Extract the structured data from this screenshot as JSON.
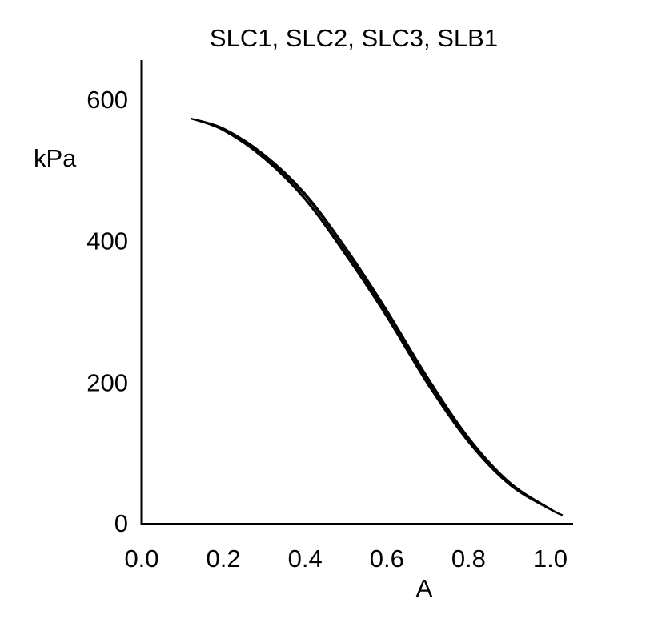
{
  "chart_data": {
    "type": "line",
    "title": "SLC1, SLC2, SLC3, SLB1",
    "xlabel": "A",
    "ylabel": "kPa",
    "xlim": [
      0.0,
      1.05
    ],
    "ylim": [
      0,
      650
    ],
    "xticks": [
      "0.0",
      "0.2",
      "0.4",
      "0.6",
      "0.8",
      "1.0"
    ],
    "yticks": [
      "0",
      "200",
      "400",
      "600"
    ],
    "grid": false,
    "legend": "none",
    "line_color": "#000000",
    "series": [
      {
        "x": [
          0.12,
          0.2,
          0.3,
          0.4,
          0.5,
          0.6,
          0.7,
          0.8,
          0.9,
          1.0,
          1.03
        ],
        "y": [
          573,
          557,
          518,
          460,
          382,
          295,
          200,
          117,
          56,
          20,
          12
        ]
      },
      {
        "x": [
          0.12,
          0.2,
          0.3,
          0.4,
          0.5,
          0.6,
          0.7,
          0.8,
          0.9,
          1.0,
          1.03
        ],
        "y": [
          573,
          559,
          522,
          467,
          390,
          302,
          207,
          122,
          59,
          21,
          12
        ]
      },
      {
        "x": [
          0.12,
          0.2,
          0.3,
          0.4,
          0.5,
          0.6,
          0.7,
          0.8,
          0.9,
          1.0,
          1.03
        ],
        "y": [
          573,
          556,
          516,
          458,
          379,
          292,
          197,
          115,
          55,
          20,
          12
        ]
      },
      {
        "x": [
          0.12,
          0.2,
          0.3,
          0.4,
          0.5,
          0.6,
          0.7,
          0.8,
          0.9,
          1.0,
          1.03
        ],
        "y": [
          573,
          558,
          520,
          464,
          386,
          299,
          204,
          120,
          58,
          21,
          12
        ]
      }
    ]
  }
}
